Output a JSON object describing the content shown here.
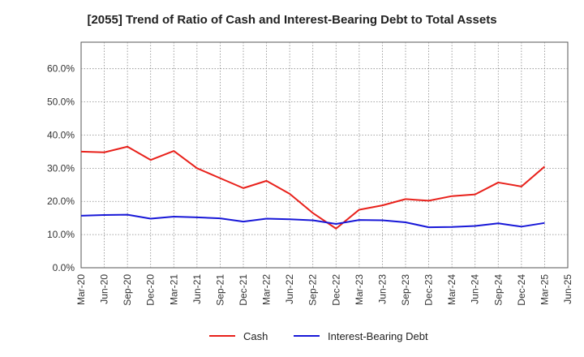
{
  "chart_data": {
    "type": "line",
    "title": "[2055]  Trend of Ratio of Cash and Interest-Bearing Debt to Total Assets",
    "x": [
      "Mar-20",
      "Jun-20",
      "Sep-20",
      "Dec-20",
      "Mar-21",
      "Jun-21",
      "Sep-21",
      "Dec-21",
      "Mar-22",
      "Jun-22",
      "Sep-22",
      "Dec-22",
      "Mar-23",
      "Jun-23",
      "Sep-23",
      "Dec-23",
      "Mar-24",
      "Jun-24",
      "Sep-24",
      "Dec-24",
      "Mar-25"
    ],
    "x_ticks": [
      "Mar-20",
      "Jun-20",
      "Sep-20",
      "Dec-20",
      "Mar-21",
      "Jun-21",
      "Sep-21",
      "Dec-21",
      "Mar-22",
      "Jun-22",
      "Sep-22",
      "Dec-22",
      "Mar-23",
      "Jun-23",
      "Sep-23",
      "Dec-23",
      "Mar-24",
      "Jun-24",
      "Sep-24",
      "Dec-24",
      "Mar-25",
      "Jun-25"
    ],
    "y_ticks": [
      "0.0%",
      "10.0%",
      "20.0%",
      "30.0%",
      "40.0%",
      "50.0%",
      "60.0%"
    ],
    "ylim": [
      0,
      68
    ],
    "grid": true,
    "legend_position": "bottom",
    "series": [
      {
        "name": "Cash",
        "color": "#e8211b",
        "values": [
          35.0,
          34.8,
          36.5,
          32.5,
          35.2,
          30.0,
          27.0,
          24.0,
          26.2,
          22.3,
          16.5,
          11.8,
          17.5,
          18.8,
          20.7,
          20.2,
          21.6,
          22.1,
          25.7,
          24.5,
          30.5
        ]
      },
      {
        "name": "Interest-Bearing Debt",
        "color": "#1818d8",
        "values": [
          15.7,
          15.9,
          16.0,
          14.8,
          15.4,
          15.2,
          14.9,
          13.9,
          14.8,
          14.6,
          14.3,
          13.2,
          14.4,
          14.3,
          13.7,
          12.2,
          12.3,
          12.6,
          13.4,
          12.4,
          13.5
        ]
      }
    ]
  }
}
